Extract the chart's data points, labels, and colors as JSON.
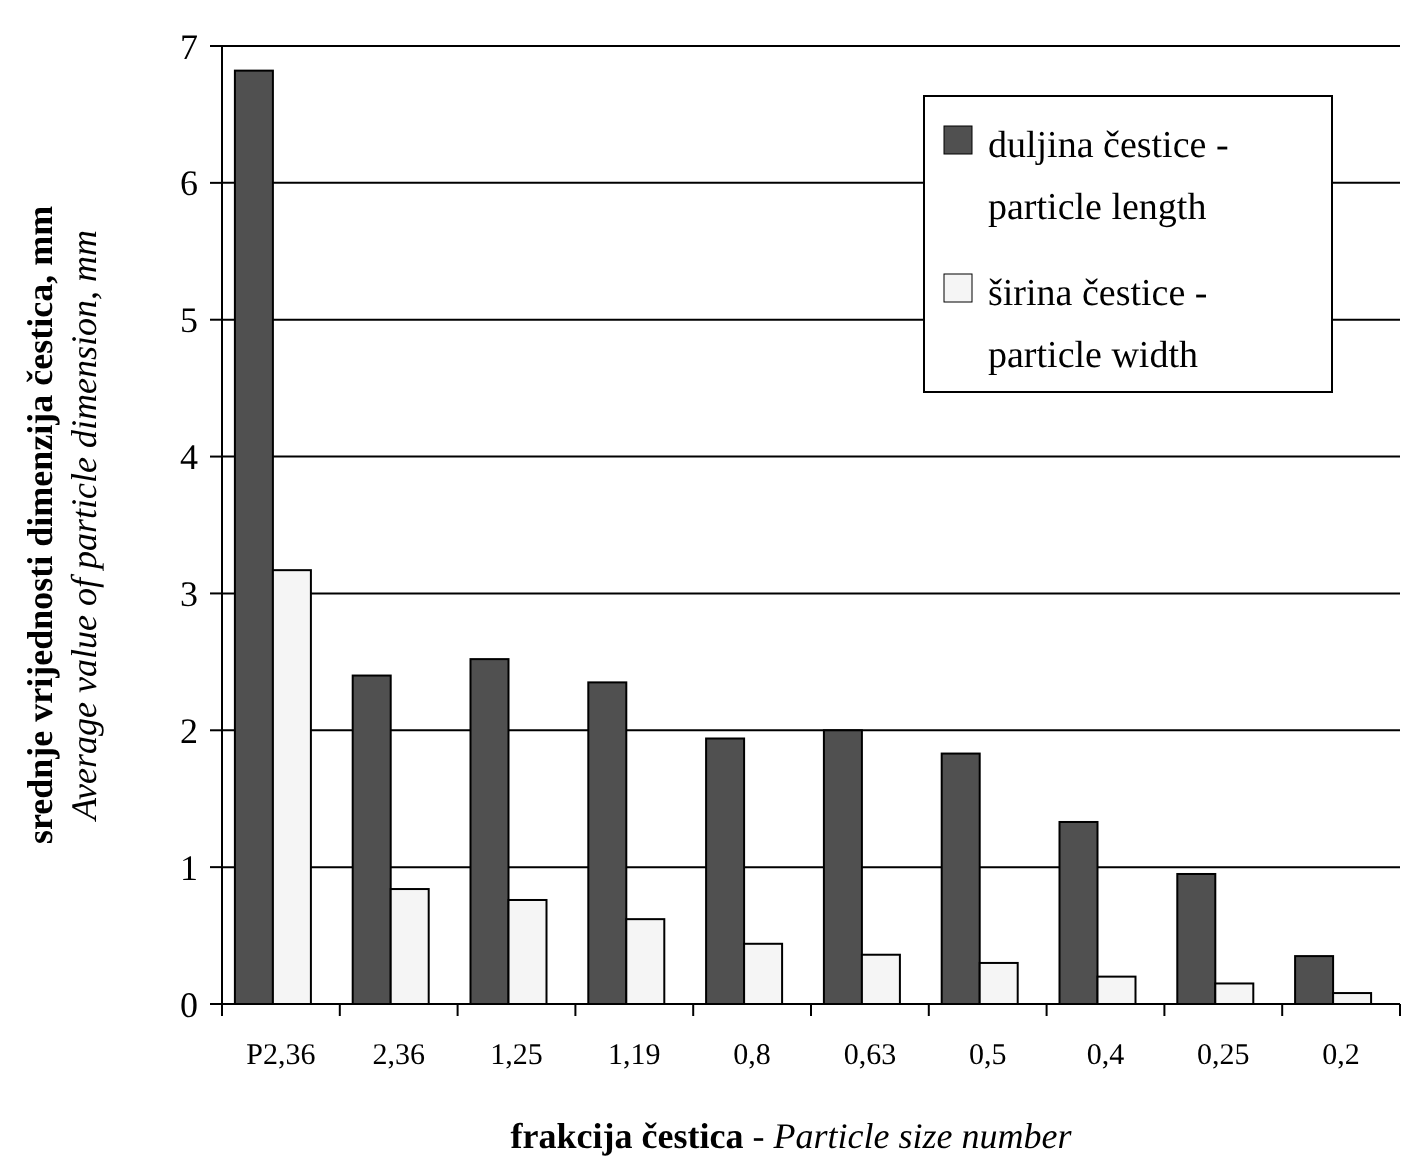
{
  "chart_data": {
    "type": "bar",
    "xlabel": "frakcija čestica - Particle size number",
    "ylabel": "srednje vrijednosti dimenzija čestica, mm\nAverage value of particle dimension, mm",
    "categories": [
      "P2,36",
      "2,36",
      "1,25",
      "1,19",
      "0,8",
      "0,63",
      "0,5",
      "0,4",
      "0,25",
      "0,2"
    ],
    "series": [
      {
        "name": "duljina čestice - particle length",
        "color": "#505050",
        "values": [
          6.82,
          2.4,
          2.52,
          2.35,
          1.94,
          2.0,
          1.83,
          1.33,
          0.95,
          0.35
        ]
      },
      {
        "name": "širina čestice - particle width",
        "color": "#f5f5f5",
        "values": [
          3.17,
          0.84,
          0.76,
          0.62,
          0.44,
          0.36,
          0.3,
          0.2,
          0.15,
          0.08
        ]
      }
    ],
    "ylim": [
      0,
      7
    ],
    "yticks": [
      0,
      1,
      2,
      3,
      4,
      5,
      6,
      7
    ],
    "grid": "y",
    "legend": "top right"
  }
}
